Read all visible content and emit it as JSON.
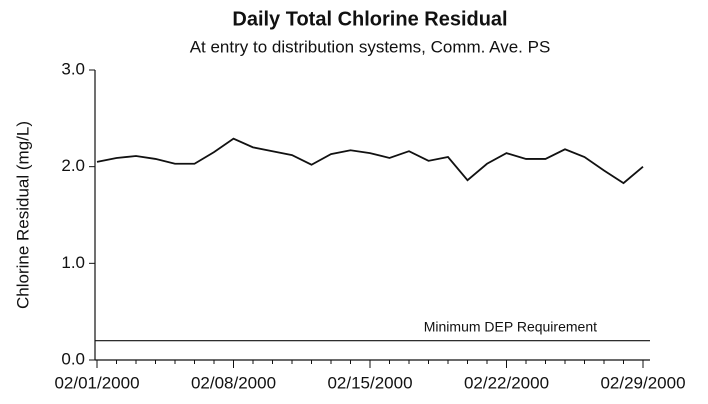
{
  "chart_data": {
    "type": "line",
    "title": "Daily Total Chlorine Residual",
    "subtitle": "At entry to distribution systems, Comm. Ave. PS",
    "y_label": "Chlorine Residual (mg/L)",
    "categories": [
      "02/01/2000",
      null,
      null,
      null,
      null,
      null,
      null,
      "02/08/2000",
      null,
      null,
      null,
      null,
      null,
      null,
      "02/15/2000",
      null,
      null,
      null,
      null,
      null,
      null,
      "02/22/2000",
      null,
      null,
      null,
      null,
      null,
      null,
      "02/29/2000"
    ],
    "values": [
      2.05,
      2.09,
      2.11,
      2.08,
      2.03,
      2.03,
      2.15,
      2.29,
      2.2,
      2.16,
      2.12,
      2.02,
      2.13,
      2.17,
      2.14,
      2.09,
      2.16,
      2.06,
      2.1,
      1.86,
      2.03,
      2.14,
      2.08,
      2.08,
      2.18,
      2.1,
      1.96,
      1.83,
      2.0
    ],
    "color": "#111111",
    "ylim": [
      0,
      3
    ],
    "yticks": [
      {
        "value": 0,
        "label": "0.0"
      },
      {
        "value": 1,
        "label": "1.0"
      },
      {
        "value": 2,
        "label": "2.0"
      },
      {
        "value": 3,
        "label": "3.0"
      }
    ],
    "reference_line": {
      "label": "Minimum DEP Requirement",
      "value": 0.2
    }
  }
}
